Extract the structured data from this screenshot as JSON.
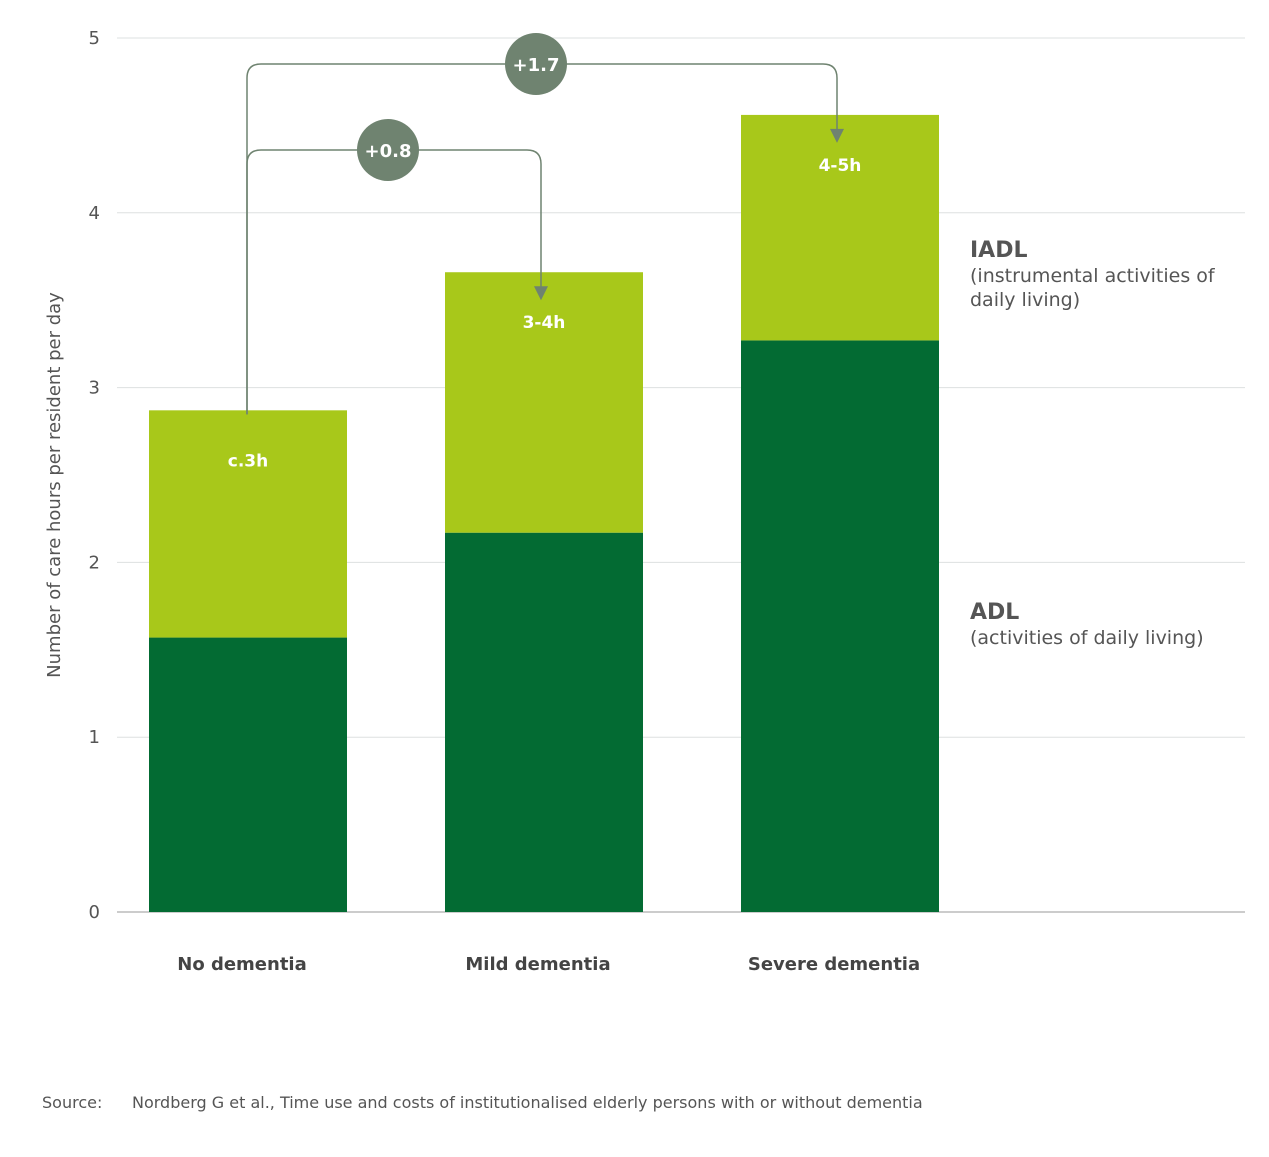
{
  "chart_data": {
    "type": "bar",
    "stacked": true,
    "ylabel": "Number of care hours per resident per day",
    "ylim": [
      0,
      5
    ],
    "yticks": [
      0,
      1,
      2,
      3,
      4,
      5
    ],
    "grid": true,
    "categories": [
      "No dementia",
      "Mild dementia",
      "Severe dementia"
    ],
    "series": [
      {
        "name": "ADL",
        "description": "(activities of daily living)",
        "color": "#036b33",
        "values": [
          1.57,
          2.17,
          3.27
        ]
      },
      {
        "name": "IADL",
        "description": "(instrumental activities of daily living)",
        "description_lines": [
          "(instrumental activities of",
          "daily living)"
        ],
        "color": "#a8c81a",
        "values": [
          1.3,
          1.49,
          1.29
        ]
      }
    ],
    "total_labels": [
      "c.3h",
      "3-4h",
      "4-5h"
    ],
    "annotations": [
      {
        "text": "+0.8",
        "from": "No dementia",
        "to": "Mild dementia"
      },
      {
        "text": "+1.7",
        "from": "No dementia",
        "to": "Severe dementia"
      }
    ],
    "annotation_color": "#6f8370",
    "legend_placement": "right"
  },
  "source": {
    "label": "Source:",
    "text": "Nordberg G et al., Time use and costs of institutionalised elderly persons with or without dementia"
  }
}
